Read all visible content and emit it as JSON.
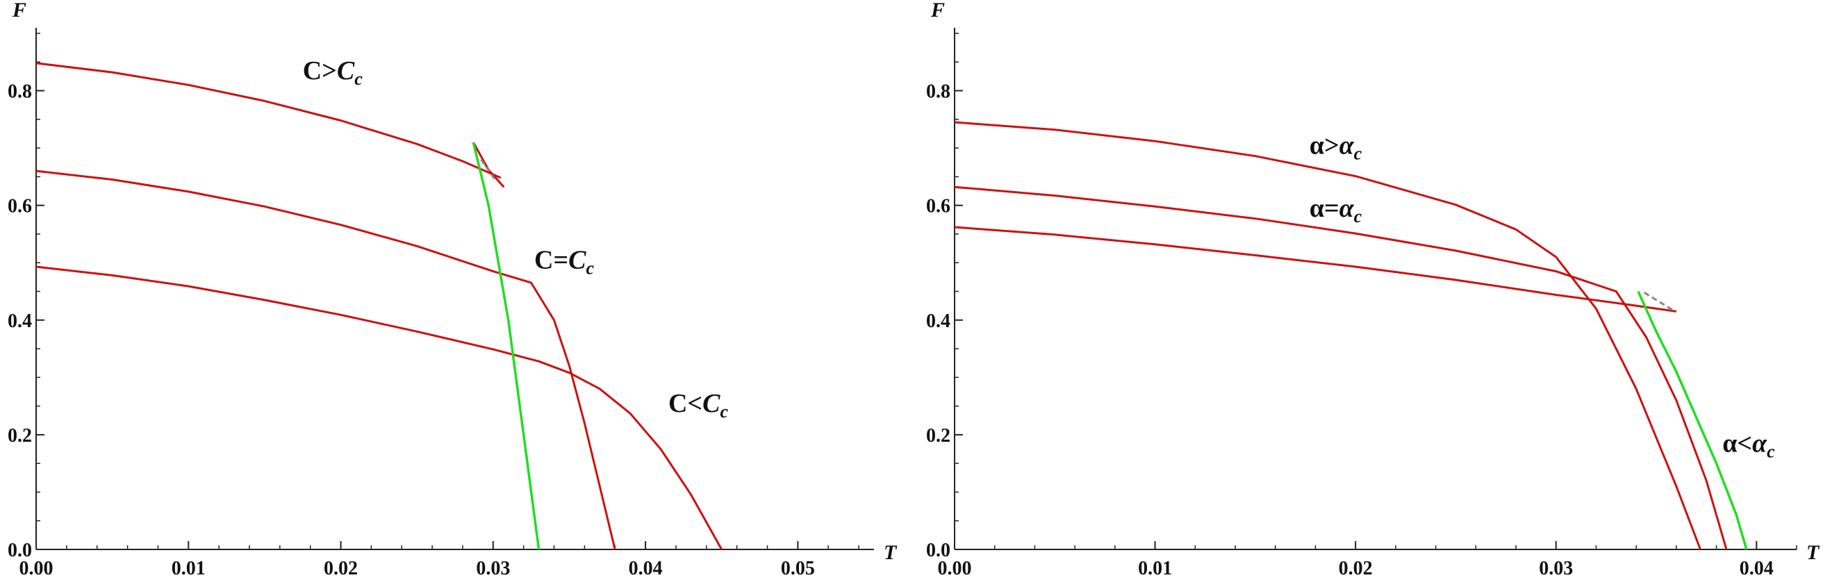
{
  "chart_data": [
    {
      "type": "line",
      "xlabel": "T",
      "ylabel": "F",
      "xlim": [
        0,
        0.055
      ],
      "ylim": [
        0,
        0.9
      ],
      "xticks": [
        0.0,
        0.01,
        0.02,
        0.03,
        0.04,
        0.05
      ],
      "xtick_labels": [
        "0.00",
        "0.01",
        "0.02",
        "0.03",
        "0.04",
        "0.05"
      ],
      "yticks": [
        0.0,
        0.2,
        0.4,
        0.6,
        0.8
      ],
      "ytick_labels": [
        "0.0",
        "0.2",
        "0.4",
        "0.6",
        "0.8"
      ],
      "grid": false,
      "colors": {
        "curves": "#cc1111",
        "transition_line": "#22dd22",
        "swallowtail_dash": "#888888",
        "axes": "#222222"
      },
      "annotations": [
        {
          "label": "C>C_c",
          "main": "C>",
          "italic": "C",
          "sub": "c",
          "x": 0.0175,
          "y": 0.82
        },
        {
          "label": "C=C_c",
          "main": "C=",
          "italic": "C",
          "sub": "c",
          "x": 0.0327,
          "y": 0.49
        },
        {
          "label": "C<C_c",
          "main": "C<",
          "italic": "C",
          "sub": "c",
          "x": 0.0415,
          "y": 0.24
        }
      ],
      "series": [
        {
          "x": [
            0,
            0.005,
            0.01,
            0.015,
            0.02,
            0.025,
            0.028,
            0.0305
          ],
          "y": [
            0.848,
            0.832,
            0.81,
            0.782,
            0.748,
            0.707,
            0.677,
            0.648
          ]
        },
        {
          "x": [
            0.0287,
            0.0297,
            0.0307
          ],
          "y": [
            0.71,
            0.662,
            0.632
          ]
        },
        {
          "x": [
            0,
            0.005,
            0.01,
            0.015,
            0.02,
            0.025,
            0.03,
            0.0325,
            0.034,
            0.035,
            0.036,
            0.037,
            0.038
          ],
          "y": [
            0.66,
            0.645,
            0.624,
            0.598,
            0.566,
            0.529,
            0.485,
            0.465,
            0.4,
            0.32,
            0.22,
            0.11,
            0.0
          ]
        },
        {
          "x": [
            0,
            0.005,
            0.01,
            0.015,
            0.02,
            0.025,
            0.03,
            0.033,
            0.035,
            0.037,
            0.039,
            0.041,
            0.043,
            0.045
          ],
          "y": [
            0.493,
            0.478,
            0.459,
            0.435,
            0.409,
            0.38,
            0.349,
            0.328,
            0.308,
            0.28,
            0.237,
            0.175,
            0.095,
            0.0
          ]
        }
      ],
      "transition_line": {
        "x": [
          0.0287,
          0.0297,
          0.031,
          0.032,
          0.033
        ],
        "y": [
          0.71,
          0.6,
          0.4,
          0.2,
          0.0
        ]
      },
      "swallowtail_dash": {
        "x": [
          0.0292,
          0.0302
        ],
        "y": [
          0.68,
          0.642
        ]
      }
    },
    {
      "type": "line",
      "xlabel": "T",
      "ylabel": "F",
      "xlim": [
        0,
        0.042
      ],
      "ylim": [
        0,
        0.9
      ],
      "xticks": [
        0.0,
        0.01,
        0.02,
        0.03,
        0.04
      ],
      "xtick_labels": [
        "0.00",
        "0.01",
        "0.02",
        "0.03",
        "0.04"
      ],
      "yticks": [
        0.0,
        0.2,
        0.4,
        0.6,
        0.8
      ],
      "ytick_labels": [
        "0.0",
        "0.2",
        "0.4",
        "0.6",
        "0.8"
      ],
      "grid": false,
      "colors": {
        "curves": "#cc1111",
        "transition_line": "#22dd22",
        "swallowtail_dash": "#888888",
        "axes": "#222222"
      },
      "annotations": [
        {
          "label": "α>α_c",
          "main": "α>",
          "italic": "α",
          "sub": "c",
          "x": 0.0177,
          "y": 0.69
        },
        {
          "label": "α=α_c",
          "main": "α=",
          "italic": "α",
          "sub": "c",
          "x": 0.0177,
          "y": 0.58
        },
        {
          "label": "α<α_c",
          "main": "α<",
          "italic": "α",
          "sub": "c",
          "x": 0.0383,
          "y": 0.17
        }
      ],
      "series": [
        {
          "x": [
            0,
            0.005,
            0.01,
            0.015,
            0.02,
            0.025,
            0.028,
            0.03,
            0.032,
            0.034,
            0.036,
            0.0372
          ],
          "y": [
            0.745,
            0.732,
            0.712,
            0.686,
            0.651,
            0.601,
            0.558,
            0.51,
            0.42,
            0.28,
            0.11,
            0.0
          ]
        },
        {
          "x": [
            0,
            0.005,
            0.01,
            0.015,
            0.02,
            0.025,
            0.03,
            0.033,
            0.0345,
            0.036,
            0.0375,
            0.0385
          ],
          "y": [
            0.632,
            0.617,
            0.598,
            0.577,
            0.551,
            0.521,
            0.485,
            0.45,
            0.37,
            0.26,
            0.12,
            0.0
          ]
        },
        {
          "x": [
            0,
            0.005,
            0.01,
            0.015,
            0.02,
            0.025,
            0.03,
            0.034,
            0.036
          ],
          "y": [
            0.562,
            0.549,
            0.532,
            0.513,
            0.493,
            0.47,
            0.444,
            0.425,
            0.415
          ]
        }
      ],
      "transition_line": {
        "x": [
          0.0341,
          0.035,
          0.036,
          0.037,
          0.038,
          0.039,
          0.0395
        ],
        "y": [
          0.45,
          0.38,
          0.31,
          0.23,
          0.15,
          0.06,
          0.0
        ]
      },
      "swallowtail_dash": {
        "x": [
          0.0344,
          0.0358
        ],
        "y": [
          0.448,
          0.418
        ]
      }
    }
  ]
}
